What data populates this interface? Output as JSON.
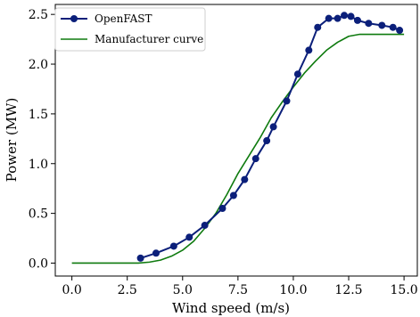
{
  "chart_data": {
    "type": "line",
    "xlabel": "Wind speed (m/s)",
    "ylabel": "Power (MW)",
    "xlim": [
      -0.75,
      15.6
    ],
    "ylim": [
      -0.13,
      2.6
    ],
    "xticks": [
      0.0,
      2.5,
      5.0,
      7.5,
      10.0,
      12.5,
      15.0
    ],
    "xtick_labels": [
      "0.0",
      "2.5",
      "5.0",
      "7.5",
      "10.0",
      "12.5",
      "15.0"
    ],
    "yticks": [
      0.0,
      0.5,
      1.0,
      1.5,
      2.0,
      2.5
    ],
    "ytick_labels": [
      "0.0",
      "0.5",
      "1.0",
      "1.5",
      "2.0",
      "2.5"
    ],
    "grid": false,
    "legend_position": "top-left",
    "series": [
      {
        "name": "OpenFAST",
        "color": "#0b1f7a",
        "marker": "circle",
        "x": [
          3.1,
          3.8,
          4.6,
          5.3,
          6.0,
          6.8,
          7.3,
          7.8,
          8.3,
          8.8,
          9.1,
          9.7,
          10.2,
          10.7,
          11.1,
          11.6,
          12.0,
          12.3,
          12.6,
          12.9,
          13.4,
          14.0,
          14.5,
          14.8
        ],
        "y": [
          0.05,
          0.1,
          0.17,
          0.26,
          0.38,
          0.55,
          0.68,
          0.84,
          1.05,
          1.23,
          1.37,
          1.63,
          1.9,
          2.14,
          2.37,
          2.46,
          2.46,
          2.49,
          2.48,
          2.44,
          2.41,
          2.39,
          2.37,
          2.34
        ]
      },
      {
        "name": "Manufacturer curve",
        "color": "#0e7a0e",
        "marker": "none",
        "x": [
          0.0,
          3.0,
          3.5,
          4.0,
          4.5,
          5.0,
          5.5,
          6.0,
          6.5,
          7.0,
          7.5,
          8.0,
          8.5,
          9.0,
          9.5,
          10.0,
          10.5,
          11.0,
          11.5,
          12.0,
          12.5,
          13.0,
          14.0,
          15.0
        ],
        "y": [
          0.0,
          0.0,
          0.01,
          0.03,
          0.07,
          0.13,
          0.22,
          0.35,
          0.5,
          0.69,
          0.9,
          1.08,
          1.26,
          1.46,
          1.62,
          1.77,
          1.91,
          2.03,
          2.14,
          2.22,
          2.28,
          2.3,
          2.3,
          2.3
        ]
      }
    ]
  }
}
